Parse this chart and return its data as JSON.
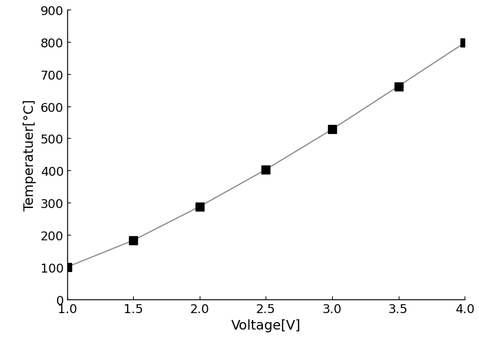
{
  "x": [
    1.0,
    1.5,
    2.0,
    2.5,
    3.0,
    3.5,
    4.0
  ],
  "y": [
    100,
    183,
    288,
    403,
    528,
    662,
    797
  ],
  "xlabel": "Voltage[V]",
  "ylabel": "Temperatuer[°C]",
  "xlim": [
    1.0,
    4.0
  ],
  "ylim": [
    0,
    900
  ],
  "xticks": [
    1.0,
    1.5,
    2.0,
    2.5,
    3.0,
    3.5,
    4.0
  ],
  "yticks": [
    0,
    100,
    200,
    300,
    400,
    500,
    600,
    700,
    800,
    900
  ],
  "line_color": "#888888",
  "marker": "s",
  "marker_color": "#000000",
  "marker_size": 8,
  "line_width": 1.2,
  "line_style": "-",
  "xlabel_fontsize": 14,
  "ylabel_fontsize": 14,
  "tick_fontsize": 13,
  "background_color": "#ffffff"
}
